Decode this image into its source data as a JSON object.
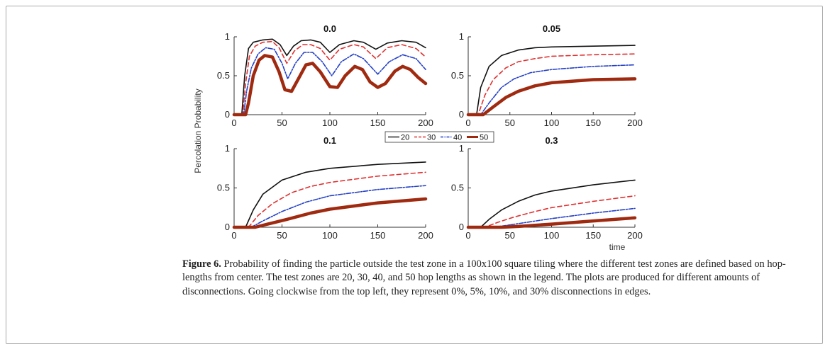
{
  "figure": {
    "ylabel": "Percolation Probability",
    "xlabel": "time",
    "caption_label": "Figure 6.",
    "caption_text": " Probability of finding the particle outside the test zone in a 100x100 square tiling where the different test zones are defined based on hop-lengths from center. The test zones are 20, 30, 40, and 50 hop lengths as shown in the legend. The plots are produced for different amounts of disconnections. Going clockwise from the top left, they represent 0%, 5%, 10%, and 30% disconnections in edges."
  },
  "legend": [
    "20",
    "30",
    "40",
    "50"
  ],
  "colors": {
    "s20": "#111111",
    "s30": "#e03030",
    "s40": "#2440c8",
    "s50": "#a02a10"
  },
  "chart_data": [
    {
      "type": "line",
      "title": "0.0",
      "xlim": [
        0,
        200
      ],
      "ylim": [
        0,
        1
      ],
      "xticks": [
        0,
        50,
        100,
        150,
        200
      ],
      "yticks": [
        0,
        0.5,
        1
      ],
      "series": [
        {
          "name": "20",
          "points": [
            [
              0,
              0
            ],
            [
              8,
              0
            ],
            [
              11,
              0.5
            ],
            [
              15,
              0.85
            ],
            [
              20,
              0.93
            ],
            [
              30,
              0.96
            ],
            [
              40,
              0.97
            ],
            [
              48,
              0.9
            ],
            [
              55,
              0.76
            ],
            [
              62,
              0.88
            ],
            [
              70,
              0.95
            ],
            [
              80,
              0.96
            ],
            [
              90,
              0.93
            ],
            [
              100,
              0.8
            ],
            [
              110,
              0.9
            ],
            [
              125,
              0.95
            ],
            [
              135,
              0.93
            ],
            [
              148,
              0.84
            ],
            [
              160,
              0.92
            ],
            [
              175,
              0.95
            ],
            [
              190,
              0.93
            ],
            [
              200,
              0.86
            ]
          ]
        },
        {
          "name": "30",
          "points": [
            [
              0,
              0
            ],
            [
              9,
              0
            ],
            [
              12,
              0.4
            ],
            [
              16,
              0.75
            ],
            [
              22,
              0.88
            ],
            [
              30,
              0.93
            ],
            [
              40,
              0.94
            ],
            [
              47,
              0.86
            ],
            [
              55,
              0.66
            ],
            [
              63,
              0.82
            ],
            [
              72,
              0.9
            ],
            [
              80,
              0.9
            ],
            [
              90,
              0.85
            ],
            [
              100,
              0.7
            ],
            [
              110,
              0.84
            ],
            [
              125,
              0.9
            ],
            [
              135,
              0.87
            ],
            [
              148,
              0.72
            ],
            [
              160,
              0.86
            ],
            [
              175,
              0.9
            ],
            [
              190,
              0.85
            ],
            [
              200,
              0.74
            ]
          ]
        },
        {
          "name": "40",
          "points": [
            [
              0,
              0
            ],
            [
              10,
              0
            ],
            [
              13,
              0.3
            ],
            [
              18,
              0.6
            ],
            [
              25,
              0.78
            ],
            [
              33,
              0.86
            ],
            [
              42,
              0.84
            ],
            [
              50,
              0.66
            ],
            [
              56,
              0.46
            ],
            [
              64,
              0.66
            ],
            [
              73,
              0.8
            ],
            [
              82,
              0.8
            ],
            [
              92,
              0.68
            ],
            [
              102,
              0.5
            ],
            [
              112,
              0.68
            ],
            [
              125,
              0.78
            ],
            [
              135,
              0.72
            ],
            [
              150,
              0.52
            ],
            [
              162,
              0.68
            ],
            [
              176,
              0.77
            ],
            [
              190,
              0.72
            ],
            [
              200,
              0.58
            ]
          ]
        },
        {
          "name": "50",
          "points": [
            [
              0,
              0
            ],
            [
              12,
              0
            ],
            [
              15,
              0.15
            ],
            [
              20,
              0.5
            ],
            [
              26,
              0.7
            ],
            [
              32,
              0.76
            ],
            [
              40,
              0.74
            ],
            [
              47,
              0.55
            ],
            [
              53,
              0.32
            ],
            [
              60,
              0.3
            ],
            [
              68,
              0.48
            ],
            [
              75,
              0.64
            ],
            [
              82,
              0.66
            ],
            [
              90,
              0.55
            ],
            [
              100,
              0.36
            ],
            [
              108,
              0.35
            ],
            [
              116,
              0.5
            ],
            [
              126,
              0.62
            ],
            [
              134,
              0.58
            ],
            [
              142,
              0.42
            ],
            [
              150,
              0.35
            ],
            [
              158,
              0.4
            ],
            [
              168,
              0.56
            ],
            [
              176,
              0.62
            ],
            [
              184,
              0.58
            ],
            [
              192,
              0.48
            ],
            [
              200,
              0.4
            ]
          ]
        }
      ]
    },
    {
      "type": "line",
      "title": "0.05",
      "xlim": [
        0,
        200
      ],
      "ylim": [
        0,
        1
      ],
      "xticks": [
        0,
        50,
        100,
        150,
        200
      ],
      "yticks": [
        0,
        0.5,
        1
      ],
      "series": [
        {
          "name": "20",
          "points": [
            [
              0,
              0
            ],
            [
              10,
              0
            ],
            [
              15,
              0.35
            ],
            [
              25,
              0.62
            ],
            [
              40,
              0.76
            ],
            [
              60,
              0.83
            ],
            [
              80,
              0.86
            ],
            [
              100,
              0.87
            ],
            [
              150,
              0.88
            ],
            [
              200,
              0.89
            ]
          ]
        },
        {
          "name": "30",
          "points": [
            [
              0,
              0
            ],
            [
              12,
              0
            ],
            [
              20,
              0.25
            ],
            [
              30,
              0.45
            ],
            [
              45,
              0.6
            ],
            [
              60,
              0.68
            ],
            [
              80,
              0.72
            ],
            [
              100,
              0.75
            ],
            [
              150,
              0.77
            ],
            [
              200,
              0.78
            ]
          ]
        },
        {
          "name": "40",
          "points": [
            [
              0,
              0
            ],
            [
              15,
              0
            ],
            [
              25,
              0.15
            ],
            [
              40,
              0.35
            ],
            [
              55,
              0.46
            ],
            [
              75,
              0.54
            ],
            [
              100,
              0.58
            ],
            [
              150,
              0.62
            ],
            [
              200,
              0.64
            ]
          ]
        },
        {
          "name": "50",
          "points": [
            [
              0,
              0
            ],
            [
              18,
              0
            ],
            [
              30,
              0.1
            ],
            [
              45,
              0.22
            ],
            [
              60,
              0.3
            ],
            [
              80,
              0.37
            ],
            [
              100,
              0.41
            ],
            [
              150,
              0.45
            ],
            [
              200,
              0.46
            ]
          ]
        }
      ]
    },
    {
      "type": "line",
      "title": "0.1",
      "xlim": [
        0,
        200
      ],
      "ylim": [
        0,
        1
      ],
      "xticks": [
        0,
        50,
        100,
        150,
        200
      ],
      "yticks": [
        0,
        0.5,
        1
      ],
      "series": [
        {
          "name": "20",
          "points": [
            [
              0,
              0
            ],
            [
              12,
              0
            ],
            [
              20,
              0.22
            ],
            [
              30,
              0.42
            ],
            [
              50,
              0.6
            ],
            [
              75,
              0.7
            ],
            [
              100,
              0.75
            ],
            [
              150,
              0.8
            ],
            [
              200,
              0.83
            ]
          ]
        },
        {
          "name": "30",
          "points": [
            [
              0,
              0
            ],
            [
              15,
              0
            ],
            [
              25,
              0.15
            ],
            [
              40,
              0.3
            ],
            [
              60,
              0.44
            ],
            [
              80,
              0.52
            ],
            [
              100,
              0.57
            ],
            [
              150,
              0.65
            ],
            [
              200,
              0.7
            ]
          ]
        },
        {
          "name": "40",
          "points": [
            [
              0,
              0
            ],
            [
              18,
              0
            ],
            [
              30,
              0.08
            ],
            [
              50,
              0.2
            ],
            [
              75,
              0.32
            ],
            [
              100,
              0.4
            ],
            [
              150,
              0.48
            ],
            [
              200,
              0.53
            ]
          ]
        },
        {
          "name": "50",
          "points": [
            [
              0,
              0
            ],
            [
              22,
              0
            ],
            [
              35,
              0.04
            ],
            [
              55,
              0.1
            ],
            [
              80,
              0.18
            ],
            [
              100,
              0.23
            ],
            [
              150,
              0.31
            ],
            [
              200,
              0.36
            ]
          ]
        }
      ]
    },
    {
      "type": "line",
      "title": "0.3",
      "xlim": [
        0,
        200
      ],
      "ylim": [
        0,
        1
      ],
      "xticks": [
        0,
        50,
        100,
        150,
        200
      ],
      "yticks": [
        0,
        0.5,
        1
      ],
      "series": [
        {
          "name": "20",
          "points": [
            [
              0,
              0
            ],
            [
              15,
              0
            ],
            [
              25,
              0.1
            ],
            [
              40,
              0.22
            ],
            [
              60,
              0.33
            ],
            [
              80,
              0.41
            ],
            [
              100,
              0.46
            ],
            [
              150,
              0.54
            ],
            [
              200,
              0.6
            ]
          ]
        },
        {
          "name": "30",
          "points": [
            [
              0,
              0
            ],
            [
              20,
              0
            ],
            [
              35,
              0.06
            ],
            [
              55,
              0.13
            ],
            [
              80,
              0.2
            ],
            [
              100,
              0.25
            ],
            [
              150,
              0.33
            ],
            [
              200,
              0.4
            ]
          ]
        },
        {
          "name": "40",
          "points": [
            [
              0,
              0
            ],
            [
              30,
              0
            ],
            [
              50,
              0.03
            ],
            [
              75,
              0.07
            ],
            [
              100,
              0.11
            ],
            [
              150,
              0.18
            ],
            [
              200,
              0.24
            ]
          ]
        },
        {
          "name": "50",
          "points": [
            [
              0,
              0
            ],
            [
              40,
              0
            ],
            [
              60,
              0.01
            ],
            [
              100,
              0.04
            ],
            [
              150,
              0.08
            ],
            [
              200,
              0.12
            ]
          ]
        }
      ]
    }
  ]
}
